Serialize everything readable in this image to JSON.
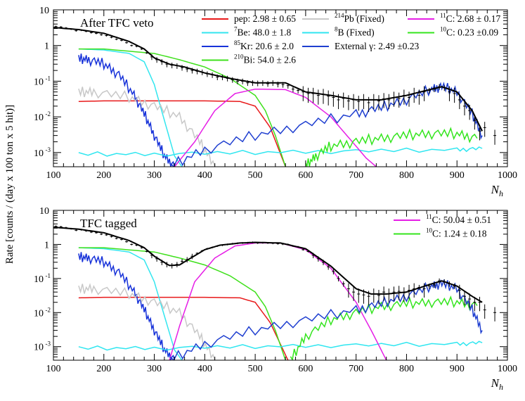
{
  "figure": {
    "y_axis_title": "Rate [counts / (day x 100 ton x 5 hit)]"
  },
  "colors": {
    "pep": "#e8191a",
    "be7": "#33e6ef",
    "kr85": "#1732d9",
    "bi210": "#3fe01c",
    "pb214": "#c8c8c8",
    "b8": "#2fe6f0",
    "c11": "#e61ee6",
    "c10": "#34e51e",
    "ext": "#1f3fd0",
    "total": "#000000",
    "data": "#000000"
  },
  "chart_data": [
    {
      "type": "line",
      "title": "After TFC veto",
      "xlabel": "N_h",
      "ylabel": "Rate [counts / (day x 100 ton x 5 hit)]",
      "xlim": [
        100,
        1000
      ],
      "ylim": [
        0.0004,
        10
      ],
      "yscale": "log",
      "x_ticks": [
        100,
        200,
        300,
        400,
        500,
        600,
        700,
        800,
        900,
        1000
      ],
      "y_ticks": [
        {
          "value": 0.001,
          "base": "10",
          "exp": "-3"
        },
        {
          "value": 0.01,
          "base": "10",
          "exp": "-2"
        },
        {
          "value": 0.1,
          "base": "10",
          "exp": "-1"
        },
        {
          "value": 1,
          "base": "1",
          "exp": ""
        },
        {
          "value": 10,
          "base": "10",
          "exp": ""
        }
      ],
      "legend": [
        {
          "key": "pep",
          "sup": "",
          "name": "pep",
          "value": ": 2.98 ± 0.65"
        },
        {
          "key": "be7",
          "sup": "7",
          "name": "Be",
          "value": ": 48.0 ±  1.8"
        },
        {
          "key": "kr85",
          "sup": "85",
          "name": "Kr",
          "value": ": 20.6 ±  2.0"
        },
        {
          "key": "bi210",
          "sup": "210",
          "name": "Bi",
          "value": ": 54.0 ±  2.6"
        },
        {
          "key": "pb214",
          "sup": "214",
          "name": "Pb",
          "value": " (Fixed)"
        },
        {
          "key": "b8",
          "sup": "8",
          "name": "B",
          "value": " (Fixed)"
        },
        {
          "key": "ext",
          "sup": "",
          "name": "External γ",
          "value": ": 2.49 ±0.23"
        },
        {
          "key": "c11",
          "sup": "11",
          "name": "C",
          "value": ": 2.68 ±  0.17"
        },
        {
          "key": "c10",
          "sup": "10",
          "name": "C",
          "value": ": 0.23 ±0.09"
        }
      ],
      "series": [
        {
          "key": "pep",
          "name": "pep",
          "x": [
            150,
            200,
            300,
            400,
            470,
            500,
            530,
            560
          ],
          "y": [
            0.027,
            0.028,
            0.028,
            0.028,
            0.027,
            0.02,
            0.005,
            0.0004
          ]
        },
        {
          "key": "be7",
          "name": "7Be",
          "x": [
            150,
            200,
            250,
            280,
            300,
            320,
            340,
            355
          ],
          "y": [
            0.8,
            0.75,
            0.6,
            0.35,
            0.08,
            0.008,
            0.0008,
            0.0004
          ]
        },
        {
          "key": "kr85",
          "name": "85Kr",
          "x": [
            150,
            170,
            200,
            230,
            260,
            280,
            300,
            320,
            340
          ],
          "y": [
            0.42,
            0.4,
            0.3,
            0.15,
            0.04,
            0.012,
            0.003,
            0.0008,
            0.0004
          ]
        },
        {
          "key": "bi210",
          "name": "210Bi",
          "x": [
            150,
            200,
            300,
            350,
            400,
            450,
            500,
            520,
            540,
            560
          ],
          "y": [
            0.8,
            0.8,
            0.6,
            0.4,
            0.25,
            0.12,
            0.04,
            0.015,
            0.003,
            0.0004
          ]
        },
        {
          "key": "pb214",
          "name": "214Pb",
          "x": [
            150,
            180,
            250,
            300,
            350,
            390,
            420
          ],
          "y": [
            0.048,
            0.05,
            0.035,
            0.02,
            0.01,
            0.002,
            0.0004
          ]
        },
        {
          "key": "b8",
          "name": "8B",
          "x": [
            150,
            300,
            500,
            700,
            900,
            950
          ],
          "y": [
            0.0009,
            0.0009,
            0.001,
            0.0011,
            0.0012,
            0.0013
          ]
        },
        {
          "key": "c11",
          "name": "11C",
          "x": [
            340,
            380,
            420,
            460,
            500,
            560,
            600,
            650,
            700,
            720,
            740
          ],
          "y": [
            0.0004,
            0.002,
            0.015,
            0.045,
            0.06,
            0.058,
            0.035,
            0.01,
            0.0015,
            0.0007,
            0.0004
          ]
        },
        {
          "key": "c10",
          "name": "10C",
          "x": [
            600,
            620,
            650,
            700,
            750,
            800,
            850,
            900,
            940
          ],
          "y": [
            0.0004,
            0.0008,
            0.0015,
            0.002,
            0.0025,
            0.003,
            0.0034,
            0.0033,
            0.0025
          ]
        },
        {
          "key": "ext",
          "name": "External γ",
          "x": [
            330,
            400,
            500,
            600,
            700,
            750,
            800,
            850,
            870,
            900,
            930,
            950
          ],
          "y": [
            0.0004,
            0.0012,
            0.003,
            0.006,
            0.012,
            0.018,
            0.03,
            0.06,
            0.07,
            0.05,
            0.012,
            0.003
          ]
        },
        {
          "key": "total",
          "name": "Total fit",
          "x": [
            100,
            150,
            200,
            250,
            280,
            300,
            330,
            360,
            400,
            450,
            500,
            560,
            600,
            650,
            700,
            750,
            800,
            850,
            870,
            900,
            930,
            950
          ],
          "y": [
            3.2,
            2.8,
            2.2,
            1.3,
            0.8,
            0.45,
            0.3,
            0.25,
            0.17,
            0.12,
            0.09,
            0.09,
            0.05,
            0.04,
            0.03,
            0.03,
            0.04,
            0.06,
            0.07,
            0.05,
            0.015,
            0.004
          ]
        }
      ],
      "data_points": {
        "x": [
          105,
          115,
          125,
          135,
          145,
          155,
          165,
          175,
          185,
          195,
          205,
          215,
          225,
          235,
          245,
          255,
          265,
          275,
          285,
          295,
          305,
          315,
          325,
          335,
          345,
          355,
          365,
          375,
          385,
          395,
          405,
          415,
          425,
          435,
          445,
          455,
          465,
          475,
          485,
          495,
          505,
          515,
          525,
          535,
          545,
          555,
          565,
          575,
          585,
          595,
          605,
          615,
          625,
          635,
          645,
          655,
          665,
          675,
          685,
          695,
          705,
          715,
          725,
          735,
          745,
          755,
          765,
          775,
          785,
          795,
          805,
          815,
          825,
          835,
          845,
          855,
          865,
          875,
          885,
          895,
          905,
          915,
          925,
          935,
          945,
          955,
          975
        ],
        "y": [
          3.4,
          3.3,
          3.1,
          2.9,
          2.6,
          2.7,
          2.5,
          2.3,
          2.2,
          2.0,
          1.9,
          1.7,
          1.5,
          1.4,
          1.2,
          1.0,
          0.95,
          0.8,
          0.62,
          0.48,
          0.4,
          0.35,
          0.3,
          0.28,
          0.27,
          0.24,
          0.22,
          0.2,
          0.19,
          0.18,
          0.16,
          0.15,
          0.13,
          0.13,
          0.12,
          0.11,
          0.1,
          0.1,
          0.09,
          0.09,
          0.088,
          0.09,
          0.085,
          0.09,
          0.082,
          0.08,
          0.075,
          0.06,
          0.055,
          0.05,
          0.045,
          0.045,
          0.04,
          0.042,
          0.038,
          0.035,
          0.03,
          0.033,
          0.028,
          0.03,
          0.027,
          0.03,
          0.025,
          0.03,
          0.028,
          0.032,
          0.03,
          0.035,
          0.033,
          0.04,
          0.035,
          0.045,
          0.04,
          0.05,
          0.055,
          0.06,
          0.07,
          0.065,
          0.05,
          0.045,
          0.03,
          0.02,
          0.015,
          0.008,
          0.004,
          0.005,
          0.003
        ]
      }
    },
    {
      "type": "line",
      "title": "TFC tagged",
      "xlabel": "N_h",
      "ylabel": "Rate [counts / (day x 100 ton x 5 hit)]",
      "xlim": [
        100,
        1000
      ],
      "ylim": [
        0.0004,
        10
      ],
      "yscale": "log",
      "x_ticks": [
        100,
        200,
        300,
        400,
        500,
        600,
        700,
        800,
        900,
        1000
      ],
      "y_ticks": [
        {
          "value": 0.001,
          "base": "10",
          "exp": "-3"
        },
        {
          "value": 0.01,
          "base": "10",
          "exp": "-2"
        },
        {
          "value": 0.1,
          "base": "10",
          "exp": "-1"
        },
        {
          "value": 1,
          "base": "1",
          "exp": ""
        },
        {
          "value": 10,
          "base": "10",
          "exp": ""
        }
      ],
      "legend": [
        {
          "key": "c11",
          "sup": "11",
          "name": "C",
          "value": ": 50.04 ±  0.51"
        },
        {
          "key": "c10",
          "sup": "10",
          "name": "C",
          "value": ": 1.24 ± 0.18"
        }
      ],
      "series": [
        {
          "key": "pep",
          "name": "pep",
          "x": [
            150,
            200,
            300,
            400,
            470,
            500,
            530,
            565
          ],
          "y": [
            0.027,
            0.028,
            0.028,
            0.028,
            0.027,
            0.02,
            0.005,
            0.0004
          ]
        },
        {
          "key": "be7",
          "name": "7Be",
          "x": [
            150,
            200,
            250,
            280,
            300,
            320,
            340,
            355
          ],
          "y": [
            0.8,
            0.75,
            0.6,
            0.35,
            0.08,
            0.008,
            0.0008,
            0.0004
          ]
        },
        {
          "key": "kr85",
          "name": "85Kr",
          "x": [
            150,
            170,
            200,
            230,
            260,
            280,
            300,
            320,
            340
          ],
          "y": [
            0.42,
            0.4,
            0.3,
            0.15,
            0.04,
            0.012,
            0.003,
            0.0008,
            0.0004
          ]
        },
        {
          "key": "bi210",
          "name": "210Bi",
          "x": [
            150,
            200,
            300,
            350,
            400,
            450,
            500,
            520,
            540,
            560
          ],
          "y": [
            0.8,
            0.8,
            0.6,
            0.4,
            0.25,
            0.12,
            0.04,
            0.015,
            0.003,
            0.0004
          ]
        },
        {
          "key": "pb214",
          "name": "214Pb",
          "x": [
            150,
            180,
            250,
            300,
            350,
            390,
            420
          ],
          "y": [
            0.048,
            0.05,
            0.035,
            0.02,
            0.01,
            0.002,
            0.0004
          ]
        },
        {
          "key": "b8",
          "name": "8B",
          "x": [
            150,
            300,
            500,
            700,
            900,
            950
          ],
          "y": [
            0.0009,
            0.0009,
            0.001,
            0.0011,
            0.0012,
            0.0013
          ]
        },
        {
          "key": "c11",
          "name": "11C",
          "x": [
            330,
            350,
            380,
            420,
            460,
            500,
            550,
            600,
            650,
            700,
            730,
            760
          ],
          "y": [
            0.0004,
            0.004,
            0.08,
            0.4,
            0.9,
            1.1,
            1.1,
            0.7,
            0.2,
            0.02,
            0.003,
            0.0004
          ]
        },
        {
          "key": "c10",
          "name": "10C",
          "x": [
            570,
            600,
            650,
            700,
            750,
            800,
            850,
            900,
            940
          ],
          "y": [
            0.0004,
            0.002,
            0.006,
            0.01,
            0.015,
            0.018,
            0.02,
            0.02,
            0.016
          ]
        },
        {
          "key": "ext",
          "name": "External γ",
          "x": [
            330,
            400,
            500,
            600,
            700,
            750,
            800,
            850,
            870,
            900,
            930,
            950
          ],
          "y": [
            0.0004,
            0.0012,
            0.003,
            0.006,
            0.012,
            0.018,
            0.03,
            0.06,
            0.07,
            0.05,
            0.012,
            0.003
          ]
        },
        {
          "key": "total",
          "name": "Total fit",
          "x": [
            100,
            150,
            200,
            250,
            280,
            300,
            330,
            350,
            370,
            400,
            430,
            470,
            500,
            550,
            600,
            650,
            700,
            730,
            760,
            800,
            850,
            870,
            900,
            930,
            950
          ],
          "y": [
            3.2,
            2.8,
            2.2,
            1.3,
            0.8,
            0.45,
            0.24,
            0.25,
            0.38,
            0.7,
            0.95,
            1.1,
            1.15,
            1.1,
            0.75,
            0.23,
            0.05,
            0.035,
            0.035,
            0.04,
            0.07,
            0.085,
            0.06,
            0.03,
            0.02
          ]
        }
      ],
      "data_points": {
        "x": [
          105,
          115,
          125,
          135,
          145,
          155,
          165,
          175,
          185,
          195,
          205,
          215,
          225,
          235,
          245,
          255,
          265,
          275,
          285,
          295,
          305,
          315,
          325,
          335,
          345,
          355,
          365,
          375,
          385,
          395,
          405,
          415,
          425,
          435,
          445,
          455,
          465,
          475,
          485,
          495,
          505,
          515,
          525,
          535,
          545,
          555,
          565,
          575,
          585,
          595,
          605,
          615,
          625,
          635,
          645,
          655,
          665,
          675,
          685,
          695,
          705,
          715,
          725,
          735,
          745,
          755,
          765,
          775,
          785,
          795,
          805,
          815,
          825,
          835,
          845,
          855,
          865,
          875,
          885,
          895,
          905,
          915,
          925,
          935,
          945,
          955,
          975
        ],
        "y": [
          3.4,
          3.3,
          3.1,
          2.9,
          2.6,
          2.7,
          2.5,
          2.3,
          2.2,
          2.0,
          1.9,
          1.7,
          1.5,
          1.4,
          1.2,
          1.0,
          0.95,
          0.8,
          0.62,
          0.48,
          0.38,
          0.3,
          0.26,
          0.24,
          0.26,
          0.32,
          0.36,
          0.45,
          0.55,
          0.65,
          0.75,
          0.82,
          0.9,
          0.95,
          1.0,
          1.05,
          1.08,
          1.1,
          1.12,
          1.15,
          1.1,
          1.12,
          1.1,
          1.08,
          1.05,
          1.02,
          1.0,
          0.9,
          0.85,
          0.7,
          0.62,
          0.48,
          0.38,
          0.3,
          0.22,
          0.16,
          0.1,
          0.07,
          0.05,
          0.04,
          0.035,
          0.033,
          0.03,
          0.035,
          0.032,
          0.04,
          0.035,
          0.04,
          0.042,
          0.038,
          0.045,
          0.05,
          0.055,
          0.05,
          0.06,
          0.065,
          0.085,
          0.08,
          0.07,
          0.06,
          0.045,
          0.03,
          0.025,
          0.02,
          0.02,
          0.012,
          0.01
        ]
      }
    }
  ]
}
